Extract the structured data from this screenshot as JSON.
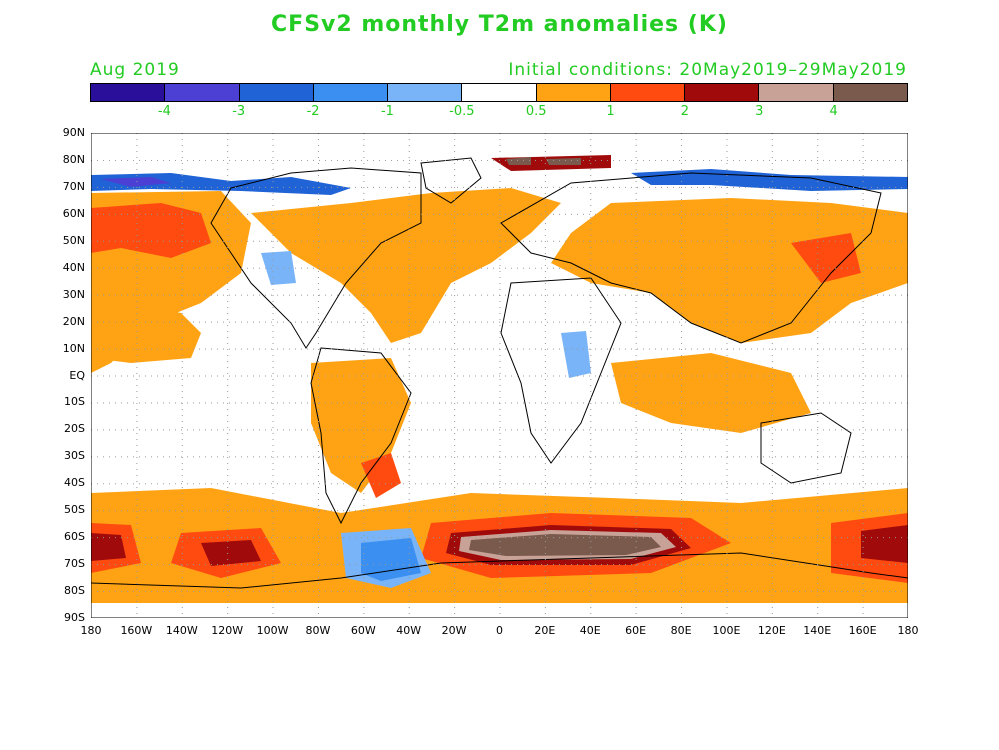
{
  "title": "CFSv2 monthly T2m anomalies (K)",
  "month_label": "Aug 2019",
  "initial_conditions": "Initial conditions: 20May2019–29May2019",
  "colorbar": {
    "colors": [
      "#2a0f9a",
      "#4b3fd4",
      "#1f63d6",
      "#3a8ff0",
      "#79b4f8",
      "#ffffff",
      "#ffa314",
      "#ff4a10",
      "#a00a0a",
      "#c9a297",
      "#7b5a4e"
    ],
    "labels": [
      "-4",
      "-3",
      "-2",
      "-1",
      "-0.5",
      "0.5",
      "1",
      "2",
      "3",
      "4"
    ]
  },
  "lat_labels": [
    "90N",
    "80N",
    "70N",
    "60N",
    "50N",
    "40N",
    "30N",
    "20N",
    "10N",
    "EQ",
    "10S",
    "20S",
    "30S",
    "40S",
    "50S",
    "60S",
    "70S",
    "80S",
    "90S"
  ],
  "lon_labels": [
    "180",
    "160W",
    "140W",
    "120W",
    "100W",
    "80W",
    "60W",
    "40W",
    "20W",
    "0",
    "20E",
    "40E",
    "60E",
    "80E",
    "100E",
    "120E",
    "140E",
    "160E",
    "180"
  ],
  "map_colors": {
    "warm1": "#ffa314",
    "warm2": "#ff4a10",
    "warm3": "#a00a0a",
    "warm4": "#c9a297",
    "warm5": "#7b5a4e",
    "cold1": "#79b4f8",
    "cold2": "#3a8ff0",
    "cold3": "#1f63d6",
    "cold4": "#4b3fd4"
  }
}
